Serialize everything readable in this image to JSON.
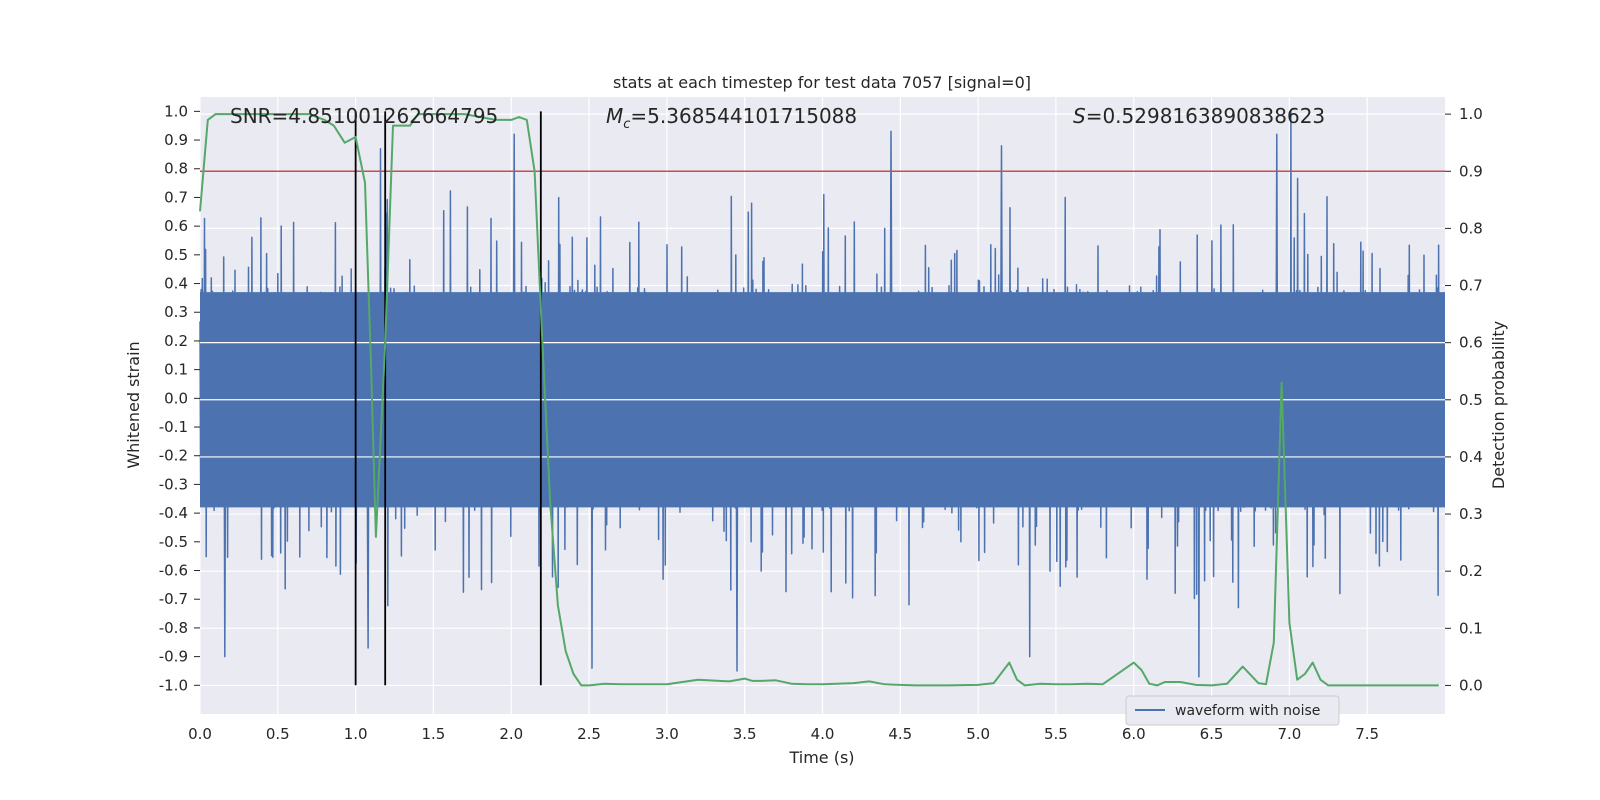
{
  "chart_data": {
    "type": "line",
    "title": "stats at each timestep for test data 7057 [signal=0]",
    "xlabel": "Time (s)",
    "ylabel_left": "Whitened strain",
    "ylabel_right": "Detection probability",
    "xlim": [
      0.0,
      8.0
    ],
    "ylim_left": [
      -1.1,
      1.05
    ],
    "ylim_right": [
      -0.05,
      1.03
    ],
    "x_ticks": [
      "0.0",
      "0.5",
      "1.0",
      "1.5",
      "2.0",
      "2.5",
      "3.0",
      "3.5",
      "4.0",
      "4.5",
      "5.0",
      "5.5",
      "6.0",
      "6.5",
      "7.0",
      "7.5"
    ],
    "y_ticks_left": [
      "1.0",
      "0.9",
      "0.8",
      "0.7",
      "0.6",
      "0.5",
      "0.4",
      "0.3",
      "0.2",
      "0.1",
      "0.0",
      "-0.1",
      "-0.2",
      "-0.3",
      "-0.4",
      "-0.5",
      "-0.6",
      "-0.7",
      "-0.8",
      "-0.9",
      "-1.0"
    ],
    "y_ticks_right": [
      "1.0",
      "0.9",
      "0.8",
      "0.7",
      "0.6",
      "0.5",
      "0.4",
      "0.3",
      "0.2",
      "0.1",
      "0.0"
    ],
    "grid": true,
    "legend_position": "bottom-right",
    "stats": {
      "snr": "SNR=4.851001262664795",
      "mc_symbol": "M",
      "mc_sub": "c",
      "mc_value": "=5.368544101715088",
      "s_symbol": "S",
      "s_value": "=0.5298163890838623"
    },
    "threshold": {
      "value": 0.9,
      "axis": "right",
      "color": "#c44e52"
    },
    "vlines": {
      "x": [
        1.0,
        1.19,
        2.19
      ],
      "color": "#000000"
    },
    "series": [
      {
        "name": "waveform with noise",
        "axis": "left",
        "color": "#4c72b0",
        "style": "dense noisy waveform, core band approx -0.4 to 0.4, spikes to about +/-0.95",
        "peaks": [
          {
            "x": 0.16,
            "y": -0.9
          },
          {
            "x": 1.08,
            "y": -0.87
          },
          {
            "x": 1.16,
            "y": 0.87
          },
          {
            "x": 2.02,
            "y": 0.92
          },
          {
            "x": 2.52,
            "y": -0.94
          },
          {
            "x": 3.45,
            "y": -0.95
          },
          {
            "x": 4.44,
            "y": 0.93
          },
          {
            "x": 5.15,
            "y": 0.88
          },
          {
            "x": 5.33,
            "y": -0.9
          },
          {
            "x": 6.42,
            "y": -0.97
          },
          {
            "x": 6.92,
            "y": 0.92
          },
          {
            "x": 7.01,
            "y": 1.0
          }
        ]
      },
      {
        "name": "",
        "axis": "right",
        "color": "#55a868",
        "x": [
          0.0,
          0.05,
          0.1,
          0.2,
          0.3,
          0.4,
          0.5,
          0.6,
          0.7,
          0.8,
          0.86,
          0.93,
          1.0,
          1.06,
          1.1,
          1.13,
          1.19,
          1.24,
          1.3,
          1.35,
          1.4,
          1.45,
          1.5,
          1.6,
          1.7,
          1.8,
          1.9,
          2.0,
          2.05,
          2.1,
          2.15,
          2.2,
          2.25,
          2.3,
          2.35,
          2.4,
          2.45,
          2.5,
          2.6,
          2.7,
          2.8,
          2.9,
          3.0,
          3.2,
          3.4,
          3.5,
          3.55,
          3.6,
          3.7,
          3.8,
          3.9,
          4.0,
          4.2,
          4.3,
          4.4,
          4.5,
          4.6,
          4.8,
          5.0,
          5.1,
          5.2,
          5.25,
          5.3,
          5.4,
          5.5,
          5.6,
          5.7,
          5.8,
          6.0,
          6.05,
          6.1,
          6.15,
          6.2,
          6.3,
          6.4,
          6.5,
          6.6,
          6.7,
          6.8,
          6.85,
          6.9,
          6.95,
          7.0,
          7.05,
          7.1,
          7.15,
          7.2,
          7.25,
          7.3,
          7.35,
          7.4,
          7.6,
          7.8,
          7.96
        ],
        "y": [
          0.83,
          0.99,
          1.0,
          1.0,
          1.0,
          1.0,
          1.0,
          1.0,
          1.0,
          0.99,
          0.98,
          0.95,
          0.96,
          0.88,
          0.55,
          0.26,
          0.6,
          0.98,
          0.98,
          0.98,
          1.0,
          1.0,
          1.0,
          1.0,
          1.0,
          0.995,
          0.99,
          0.99,
          0.995,
          0.99,
          0.9,
          0.6,
          0.32,
          0.14,
          0.06,
          0.02,
          0.0,
          0.0,
          0.003,
          0.002,
          0.002,
          0.002,
          0.002,
          0.01,
          0.007,
          0.012,
          0.008,
          0.008,
          0.009,
          0.003,
          0.002,
          0.002,
          0.004,
          0.007,
          0.002,
          0.001,
          0.0,
          0.0,
          0.001,
          0.004,
          0.04,
          0.01,
          0.0,
          0.003,
          0.002,
          0.002,
          0.003,
          0.002,
          0.04,
          0.027,
          0.003,
          0.0,
          0.006,
          0.006,
          0.001,
          0.0,
          0.003,
          0.033,
          0.004,
          0.002,
          0.075,
          0.53,
          0.11,
          0.01,
          0.02,
          0.04,
          0.01,
          0.0,
          0.0,
          0.0,
          0.0,
          0.0,
          0.0,
          0.0
        ]
      }
    ],
    "legend": [
      {
        "label": "waveform with noise",
        "color": "#4c72b0"
      }
    ]
  }
}
